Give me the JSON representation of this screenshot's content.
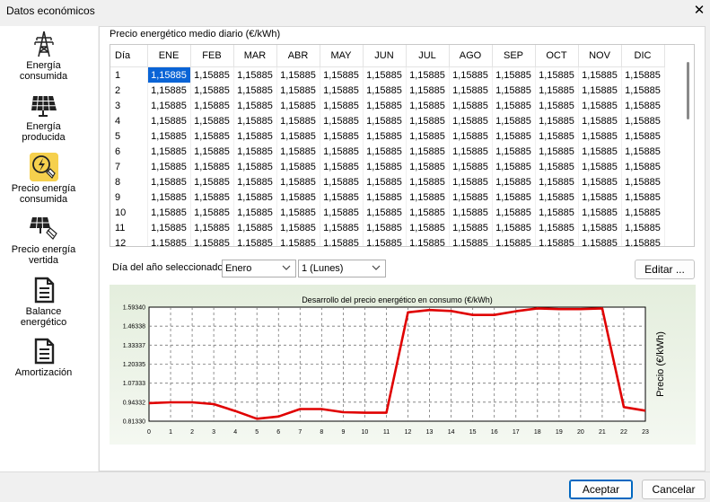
{
  "window": {
    "title": "Datos económicos"
  },
  "sidebar": {
    "items": [
      {
        "label": "Energía consumida",
        "icon": "power-tower-icon"
      },
      {
        "label": "Energía producida",
        "icon": "solar-panel-icon"
      },
      {
        "label": "Precio energía consumida",
        "icon": "energy-price-icon",
        "selected": true
      },
      {
        "label": "Precio energía vertida",
        "icon": "solar-price-icon"
      },
      {
        "label": "Balance energético",
        "icon": "document-icon"
      },
      {
        "label": "Amortización",
        "icon": "document-icon"
      }
    ]
  },
  "grid": {
    "title": "Precio energético medio diario (€/kWh)",
    "day_header": "Día",
    "months": [
      "ENE",
      "FEB",
      "MAR",
      "ABR",
      "MAY",
      "JUN",
      "JUL",
      "AGO",
      "SEP",
      "OCT",
      "NOV",
      "DIC"
    ],
    "days": [
      "1",
      "2",
      "3",
      "4",
      "5",
      "6",
      "7",
      "8",
      "9",
      "10",
      "11",
      "12"
    ],
    "cell_value": "1,15885",
    "selected_cell": {
      "day": "1",
      "month": "ENE"
    }
  },
  "selector": {
    "label": "Día del año seleccionado:",
    "month": "Enero",
    "day": "1 (Lunes)",
    "edit_button": "Editar ..."
  },
  "chart_data": {
    "type": "line",
    "title": "Desarrollo del precio energético en consumo (€/kWh)",
    "ylabel": "Precio (€/kWh)",
    "xlabel": "",
    "x": [
      0,
      1,
      2,
      3,
      4,
      5,
      6,
      7,
      8,
      9,
      10,
      11,
      12,
      13,
      14,
      15,
      16,
      17,
      18,
      19,
      20,
      21,
      22,
      23
    ],
    "y": [
      0.937,
      0.942,
      0.942,
      0.93,
      0.883,
      0.83,
      0.845,
      0.896,
      0.896,
      0.875,
      0.871,
      0.871,
      1.558,
      1.574,
      1.567,
      1.54,
      1.54,
      1.565,
      1.585,
      1.58,
      1.58,
      1.585,
      0.91,
      0.885
    ],
    "yticks": [
      "0.81330",
      "0.94332",
      "1.07333",
      "1.20335",
      "1.33337",
      "1.46338",
      "1.59340"
    ],
    "ylim": [
      0.8133,
      1.5934
    ],
    "xticks": [
      "0",
      "1",
      "2",
      "3",
      "4",
      "5",
      "6",
      "7",
      "8",
      "9",
      "10",
      "11",
      "12",
      "13",
      "14",
      "15",
      "16",
      "17",
      "18",
      "19",
      "20",
      "21",
      "22",
      "23"
    ],
    "line_color": "#e00000",
    "grid": true
  },
  "footer": {
    "accept": "Aceptar",
    "cancel": "Cancelar"
  }
}
